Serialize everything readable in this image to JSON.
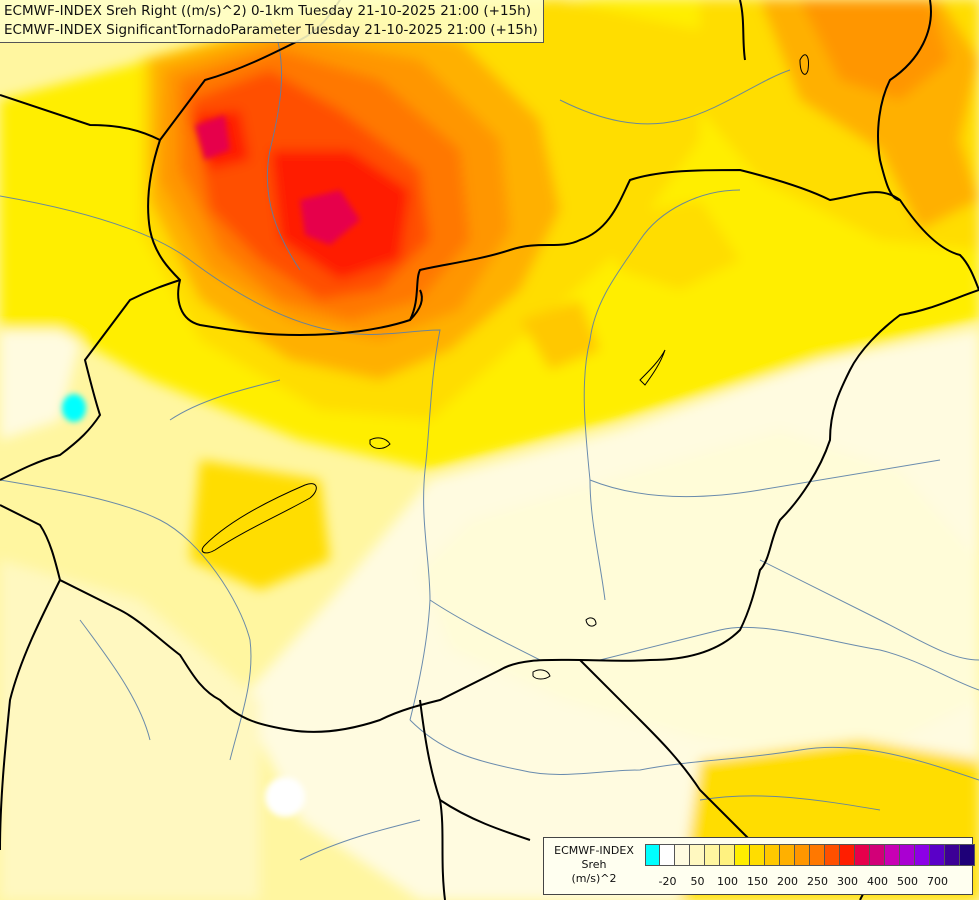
{
  "titles": [
    "ECMWF-INDEX Sreh Right ((m/s)^2) 0-1km Tuesday 21-10-2025 21:00 (+15h)",
    "ECMWF-INDEX SignificantTornadoParameter Tuesday 21-10-2025 21:00 (+15h)"
  ],
  "legend": {
    "model": "ECMWF-INDEX",
    "variable": "Sreh",
    "unit": "(m/s)^2",
    "colors": [
      "#00ffff",
      "#ffffff",
      "#fffbe0",
      "#fff8c0",
      "#fff6a0",
      "#fff280",
      "#ffee00",
      "#ffdd00",
      "#ffc800",
      "#ffb000",
      "#ff9600",
      "#ff7800",
      "#ff5000",
      "#ff1e00",
      "#e6004b",
      "#d20078",
      "#c800b4",
      "#aa00d2",
      "#8c00e6",
      "#5a00c8",
      "#3c0096",
      "#1e0078"
    ],
    "ticks": [
      {
        "label": "-20",
        "index": 1
      },
      {
        "label": "50",
        "index": 3
      },
      {
        "label": "100",
        "index": 5
      },
      {
        "label": "150",
        "index": 7
      },
      {
        "label": "200",
        "index": 9
      },
      {
        "label": "250",
        "index": 11
      },
      {
        "label": "300",
        "index": 13
      },
      {
        "label": "400",
        "index": 15
      },
      {
        "label": "500",
        "index": 17
      },
      {
        "label": "700",
        "index": 19
      }
    ]
  }
}
